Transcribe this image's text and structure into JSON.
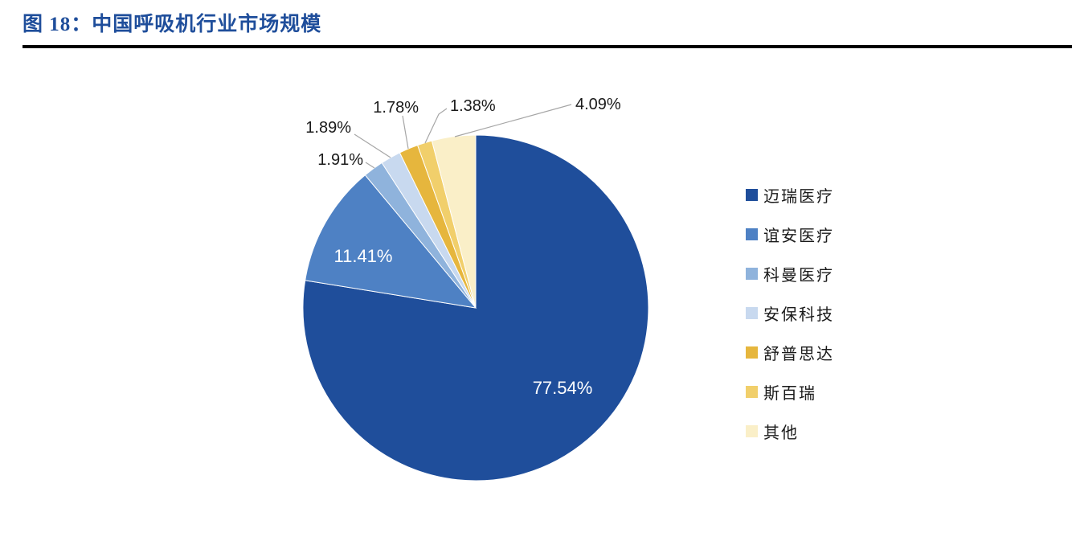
{
  "header": {
    "title": "图 18：中国呼吸机行业市场规模",
    "accent_color": "#1F4E9B"
  },
  "chart_data": {
    "type": "pie",
    "title": "中国呼吸机行业市场规模",
    "legend_position": "right",
    "slices": [
      {
        "name": "迈瑞医疗",
        "value": 77.54,
        "label": "77.54%",
        "color": "#1F4E9B",
        "label_placement": "inside"
      },
      {
        "name": "谊安医疗",
        "value": 11.41,
        "label": "11.41%",
        "color": "#4E81C4",
        "label_placement": "inside"
      },
      {
        "name": "科曼医疗",
        "value": 1.91,
        "label": "1.91%",
        "color": "#8FB3DC",
        "label_placement": "outside"
      },
      {
        "name": "安保科技",
        "value": 1.89,
        "label": "1.89%",
        "color": "#C8D9EF",
        "label_placement": "outside"
      },
      {
        "name": "舒普思达",
        "value": 1.78,
        "label": "1.78%",
        "color": "#E6B63D",
        "label_placement": "outside"
      },
      {
        "name": "斯百瑞",
        "value": 1.38,
        "label": "1.38%",
        "color": "#F1CF6B",
        "label_placement": "outside"
      },
      {
        "name": "其他",
        "value": 4.09,
        "label": "4.09%",
        "color": "#FAEFC8",
        "label_placement": "outside"
      }
    ],
    "leader_line_color": "#A6A6A6",
    "inside_label_color": "#FFFFFF",
    "outside_label_color": "#1A1A1A"
  }
}
